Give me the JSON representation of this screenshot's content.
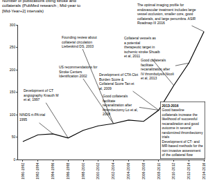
{
  "chart_data": {
    "type": "line",
    "title": "Number of publications citing stroke and collaterals (PubMed research ; Mid-year to [Mid-Year+2] intervals)",
    "categories": [
      "1990-1992",
      "1992-1994",
      "1994-1996",
      "1996-1998",
      "1998-2000",
      "2000-2002",
      "2002-2004",
      "2004-2006",
      "2006-2008",
      "2008-2010",
      "2010-2012",
      "2012-2014",
      "2014-2016"
    ],
    "values": [
      40,
      55,
      57,
      48,
      65,
      75,
      80,
      88,
      85,
      110,
      165,
      215,
      285
    ],
    "color": "#000000",
    "ylim": [
      0,
      300
    ],
    "yticks": [
      0,
      50,
      100,
      150,
      200,
      250,
      300
    ],
    "grid": false,
    "annotations": [
      {
        "text": "NINDS rt-PA trial 1995",
        "x": "1994-1996"
      },
      {
        "text": "Development of CT angiography Knauth M et al, 1997",
        "x": "1996-1998"
      },
      {
        "text": "US recommendations for Stroke Centers Identification 2002",
        "x": "2002-2004"
      },
      {
        "text": "Founding review about collateral circulation Liebeskind DS, 2003",
        "x": "2002-2004"
      },
      {
        "text": "Development of CTA Clot Burden Score & Collateral Score Tan et al, 2009",
        "x": "2008-2010"
      },
      {
        "text": "Good collaterals facilitate recanalization after thrombectomy Lo et al, 2008",
        "x": "2008-2010"
      },
      {
        "text": "Collateral vessels as a potential therapeutic target in ischemic stroke Shuaib et al, 2011",
        "x": "2010-2012"
      },
      {
        "text": "Good collaterals facilitate recanalization after IV thrombolysis Nicoli et al, 2013",
        "x": "2012-2014"
      },
      {
        "text": "The optimal imaging profile for endovascular treatment includes large vessel occlusion, smaller core, good collaterals, and large penumbra. ASIR Roadmap III 2016",
        "x": "2014-2016"
      }
    ],
    "box": {
      "title": "2013-2016",
      "items": [
        "Good baseline collaterals increase the likelihood of successful recanalization and good outcome in several randomized thrombectomy trials",
        "Development of CT- and MR-based methods for the non invasive assessment of the collateral flow"
      ]
    }
  }
}
